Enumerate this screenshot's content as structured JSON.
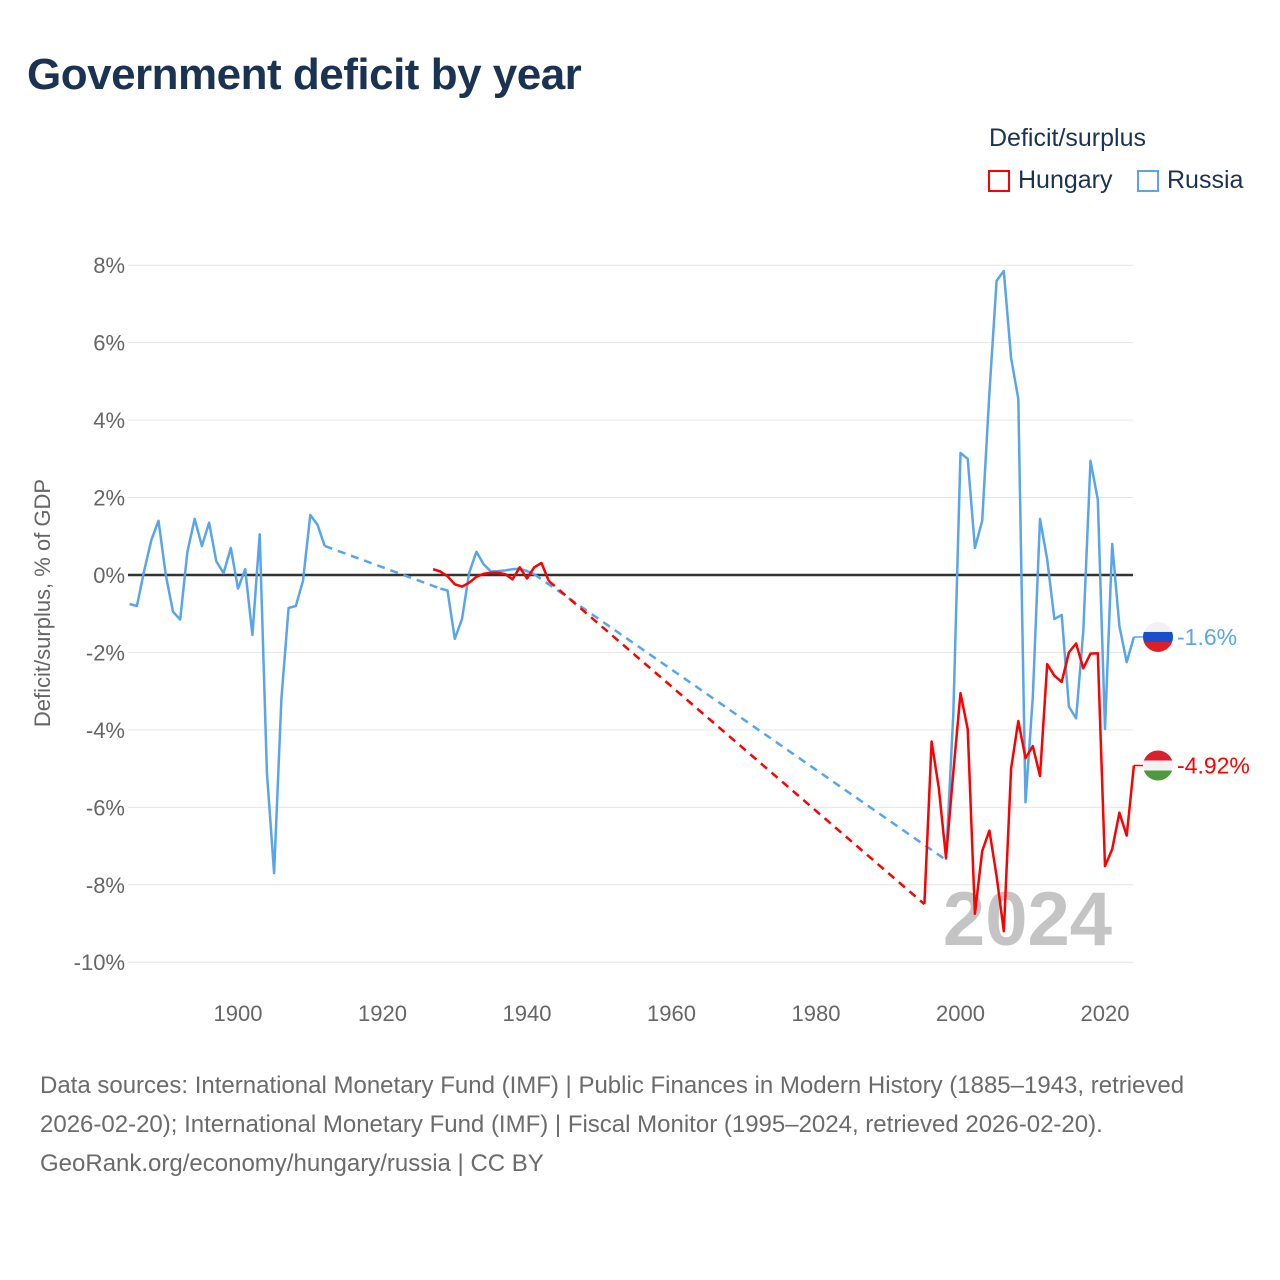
{
  "title": "Government deficit by year",
  "legend": {
    "title": "Deficit/surplus",
    "items": [
      {
        "name": "Hungary",
        "color": "#ff0000"
      },
      {
        "name": "Russia",
        "color": "#5aa5ea"
      }
    ]
  },
  "watermark": "2024",
  "footer": {
    "sources": "Data sources: International Monetary Fund (IMF) | Public Finances in Modern History (1885–1943, retrieved 2026-02-20); International Monetary Fund (IMF) | Fiscal Monitor (1995–2024, retrieved 2026-02-20).",
    "credit": "GeoRank.org/economy/hungary/russia | CC BY"
  },
  "chart_data": {
    "type": "line",
    "title": "Government deficit by year",
    "ylabel": "Deficit/surplus, % of GDP",
    "xlabel": "",
    "xlim": [
      1885,
      2024
    ],
    "ylim": [
      -10,
      8
    ],
    "xticks": [
      1900,
      1920,
      1940,
      1960,
      1980,
      2000,
      2020
    ],
    "yticks": [
      8,
      6,
      4,
      2,
      0,
      -2,
      -4,
      -6,
      -8,
      -10
    ],
    "ytick_labels": [
      "8%",
      "6%",
      "4%",
      "2%",
      "0%",
      "-2%",
      "-4%",
      "-6%",
      "-8%",
      "-10%"
    ],
    "xtick_labels": [
      "1900",
      "1920",
      "1940",
      "1960",
      "1980",
      "2000",
      "2020"
    ],
    "grid": true,
    "legend_position": "top-right",
    "series": [
      {
        "name": "Russia",
        "color": "#5aa5ea",
        "end_label": "-1.6%",
        "flag": "russia",
        "x": [
          1885,
          1886,
          1887,
          1888,
          1889,
          1890,
          1891,
          1892,
          1893,
          1894,
          1895,
          1896,
          1897,
          1898,
          1899,
          1900,
          1901,
          1902,
          1903,
          1904,
          1905,
          1906,
          1907,
          1908,
          1909,
          1910,
          1911,
          1912,
          1928,
          1929,
          1930,
          1931,
          1932,
          1933,
          1934,
          1935,
          1936,
          1937,
          1938,
          1939,
          1940,
          1941,
          1998,
          1999,
          2000,
          2001,
          2002,
          2003,
          2004,
          2005,
          2006,
          2007,
          2008,
          2009,
          2010,
          2011,
          2012,
          2013,
          2014,
          2015,
          2016,
          2017,
          2018,
          2019,
          2020,
          2021,
          2022,
          2023,
          2024
        ],
        "y": [
          -0.75,
          -0.8,
          0.1,
          0.9,
          1.4,
          0.0,
          -0.95,
          -1.15,
          0.6,
          1.45,
          0.75,
          1.35,
          0.35,
          0.05,
          0.7,
          -0.35,
          0.15,
          -1.55,
          1.05,
          -5.1,
          -7.7,
          -3.2,
          -0.85,
          -0.8,
          -0.15,
          1.55,
          1.3,
          0.75,
          -0.35,
          -0.4,
          -1.65,
          -1.14,
          0.06,
          0.6,
          0.28,
          0.09,
          0.1,
          0.12,
          0.15,
          0.16,
          0.1,
          0.02,
          -7.36,
          -3.6,
          3.15,
          3.0,
          0.7,
          1.4,
          4.7,
          7.6,
          7.85,
          5.6,
          4.55,
          -5.87,
          -3.15,
          1.45,
          0.4,
          -1.14,
          -1.03,
          -3.4,
          -3.7,
          -1.45,
          2.95,
          1.95,
          -3.98,
          0.8,
          -1.32,
          -2.25,
          -1.6
        ]
      },
      {
        "name": "Hungary",
        "color": "#ff0000",
        "end_label": "-4.92%",
        "flag": "hungary",
        "x": [
          1927,
          1928,
          1929,
          1930,
          1931,
          1932,
          1933,
          1934,
          1935,
          1936,
          1937,
          1938,
          1939,
          1940,
          1941,
          1942,
          1943,
          1995,
          1996,
          1997,
          1998,
          1999,
          2000,
          2001,
          2002,
          2003,
          2004,
          2005,
          2006,
          2007,
          2008,
          2009,
          2010,
          2011,
          2012,
          2013,
          2014,
          2015,
          2016,
          2017,
          2018,
          2019,
          2020,
          2021,
          2022,
          2023,
          2024
        ],
        "y": [
          0.15,
          0.09,
          -0.03,
          -0.24,
          -0.3,
          -0.2,
          -0.05,
          0.03,
          0.06,
          0.06,
          0.02,
          -0.11,
          0.2,
          -0.09,
          0.2,
          0.31,
          -0.15,
          -8.5,
          -4.3,
          -5.5,
          -7.3,
          -5.1,
          -3.05,
          -3.98,
          -8.75,
          -7.13,
          -6.6,
          -7.78,
          -9.2,
          -5.0,
          -3.77,
          -4.73,
          -4.42,
          -5.19,
          -2.3,
          -2.6,
          -2.76,
          -2.0,
          -1.77,
          -2.41,
          -2.03,
          -2.02,
          -7.52,
          -7.08,
          -6.14,
          -6.73,
          -4.92
        ]
      }
    ]
  }
}
